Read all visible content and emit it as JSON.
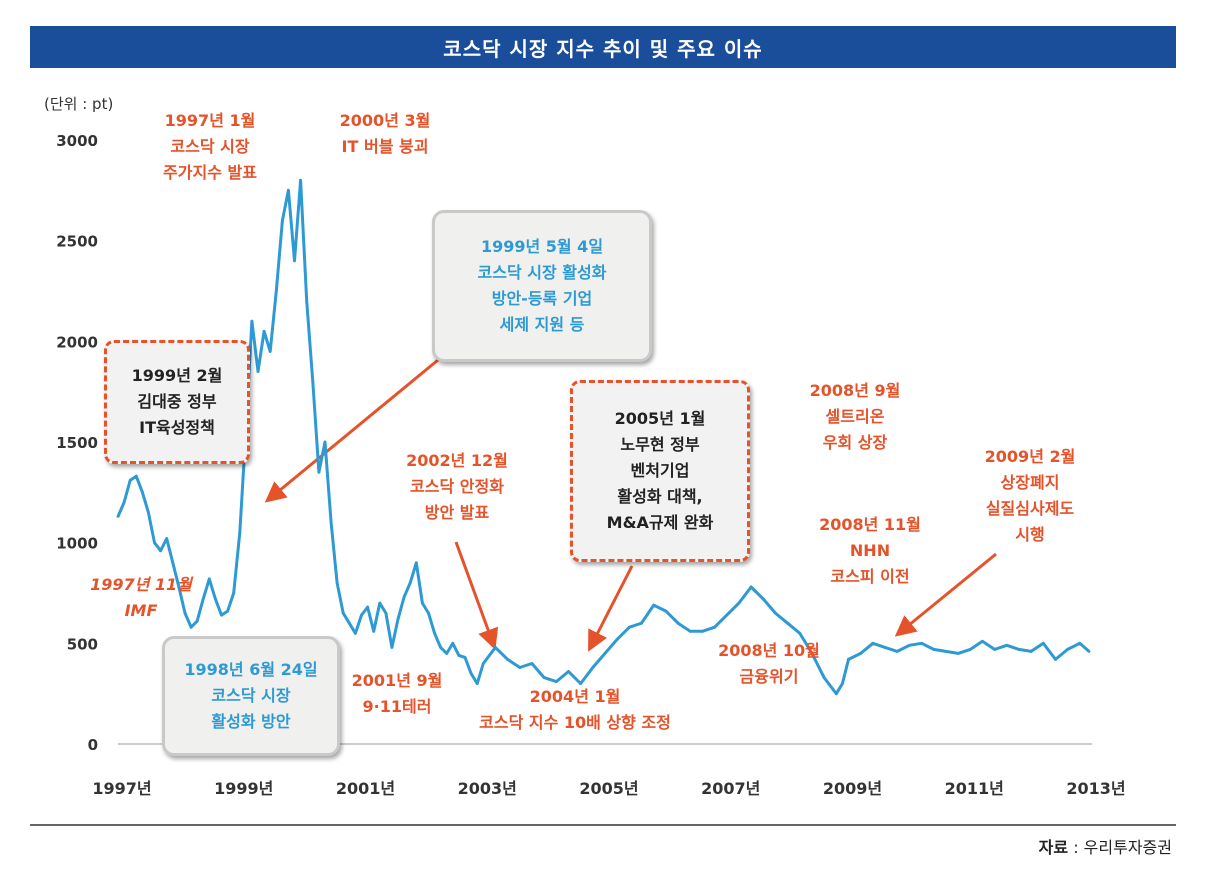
{
  "chart_data": {
    "type": "line",
    "title": "코스닥 시장 지수 추이 및 주요 이슈",
    "unit_label": "(단위 : pt)",
    "ylim": [
      0,
      3000
    ],
    "yticks": [
      0,
      500,
      1000,
      1500,
      2000,
      2500,
      3000
    ],
    "xlim": [
      1997.0,
      2013.0
    ],
    "xticks": [
      {
        "value": 1997,
        "label": "1997년"
      },
      {
        "value": 1999,
        "label": "1999년"
      },
      {
        "value": 2001,
        "label": "2001년"
      },
      {
        "value": 2003,
        "label": "2003년"
      },
      {
        "value": 2005,
        "label": "2005년"
      },
      {
        "value": 2007,
        "label": "2007년"
      },
      {
        "value": 2009,
        "label": "2009년"
      },
      {
        "value": 2011,
        "label": "2011년"
      },
      {
        "value": 2013,
        "label": "2013년"
      }
    ],
    "grid": false,
    "line_color": "#2e9ad4",
    "series": [
      {
        "x": [
          1997.0,
          1997.1,
          1997.2,
          1997.3,
          1997.4,
          1997.5,
          1997.6,
          1997.7,
          1997.8,
          1997.9,
          1998.0,
          1998.1,
          1998.2,
          1998.3,
          1998.4,
          1998.5,
          1998.6,
          1998.7,
          1998.8,
          1998.9,
          1999.0,
          1999.1,
          1999.2,
          1999.3,
          1999.4,
          1999.5,
          1999.6,
          1999.7,
          1999.8,
          1999.9,
          2000.0,
          2000.1,
          2000.2,
          2000.3,
          2000.4,
          2000.5,
          2000.6,
          2000.7,
          2000.8,
          2000.9,
          2001.0,
          2001.1,
          2001.2,
          2001.3,
          2001.4,
          2001.5,
          2001.6,
          2001.7,
          2001.8,
          2001.9,
          2002.0,
          2002.1,
          2002.2,
          2002.3,
          2002.4,
          2002.5,
          2002.6,
          2002.7,
          2002.8,
          2002.9,
          2003.0,
          2003.2,
          2003.4,
          2003.6,
          2003.8,
          2004.0,
          2004.2,
          2004.4,
          2004.6,
          2004.8,
          2005.0,
          2005.2,
          2005.4,
          2005.6,
          2005.8,
          2006.0,
          2006.2,
          2006.4,
          2006.6,
          2006.8,
          2007.0,
          2007.2,
          2007.4,
          2007.6,
          2007.8,
          2008.0,
          2008.2,
          2008.4,
          2008.6,
          2008.8,
          2008.9,
          2009.0,
          2009.2,
          2009.4,
          2009.6,
          2009.8,
          2010.0,
          2010.2,
          2010.4,
          2010.6,
          2010.8,
          2011.0,
          2011.2,
          2011.4,
          2011.6,
          2011.8,
          2012.0,
          2012.2,
          2012.4,
          2012.6,
          2012.8,
          2012.95
        ],
        "y": [
          1130,
          1200,
          1310,
          1330,
          1250,
          1150,
          1000,
          960,
          1020,
          900,
          780,
          650,
          580,
          610,
          720,
          820,
          720,
          640,
          660,
          750,
          1050,
          1550,
          2100,
          1850,
          2050,
          1950,
          2250,
          2600,
          2750,
          2400,
          2800,
          2200,
          1800,
          1350,
          1500,
          1100,
          800,
          650,
          600,
          550,
          640,
          680,
          560,
          700,
          650,
          480,
          620,
          730,
          800,
          900,
          700,
          650,
          550,
          480,
          450,
          500,
          440,
          430,
          350,
          300,
          400,
          480,
          420,
          380,
          400,
          330,
          310,
          360,
          300,
          380,
          450,
          520,
          580,
          600,
          690,
          660,
          600,
          560,
          560,
          580,
          640,
          700,
          780,
          720,
          650,
          600,
          550,
          450,
          330,
          250,
          300,
          420,
          450,
          500,
          480,
          460,
          490,
          500,
          470,
          460,
          450,
          470,
          510,
          470,
          490,
          470,
          460,
          500,
          420,
          470,
          500,
          460
        ]
      }
    ],
    "annotations": [
      {
        "id": "1997-01",
        "style": "red",
        "text": "1997년 1월\n코스닥 시장\n주가지수 발표"
      },
      {
        "id": "2000-03",
        "style": "red",
        "text": "2000년 3월\nIT 버블 붕괴"
      },
      {
        "id": "1999-02",
        "style": "dashed",
        "text": "1999년 2월\n김대중 정부\nIT육성정책"
      },
      {
        "id": "1999-05",
        "style": "grey-blue",
        "text": "1999년 5월 4일\n코스닥 시장 활성화\n방안-등록 기업\n세제 지원 등"
      },
      {
        "id": "1997-11",
        "style": "red",
        "text": "1997년 11월\nIMF"
      },
      {
        "id": "1998-06",
        "style": "grey-blue",
        "text": "1998년 6월 24일\n코스닥 시장\n활성화 방안"
      },
      {
        "id": "2001-09",
        "style": "red",
        "text": "2001년 9월\n9·11테러"
      },
      {
        "id": "2002-12",
        "style": "red",
        "text": "2002년 12월\n코스닥 안정화\n방안 발표"
      },
      {
        "id": "2004-01",
        "style": "red",
        "text": "2004년 1월\n코스닥 지수 10배 상향 조정"
      },
      {
        "id": "2005-01",
        "style": "dashed",
        "text": "2005년 1월\n노무현 정부\n벤처기업\n활성화 대책,\nM&A규제 완화"
      },
      {
        "id": "2008-10",
        "style": "red",
        "text": "2008년 10월\n금융위기"
      },
      {
        "id": "2008-09",
        "style": "red",
        "text": "2008년 9월\n셀트리온\n우회 상장"
      },
      {
        "id": "2008-11",
        "style": "red",
        "text": "2008년 11월\nNHN\n코스피 이전"
      },
      {
        "id": "2009-02",
        "style": "red",
        "text": "2009년 2월\n상장폐지\n실질심사제도\n시행"
      }
    ]
  },
  "source": {
    "label": "자료",
    "sep": " : ",
    "name": "우리투자증권"
  }
}
